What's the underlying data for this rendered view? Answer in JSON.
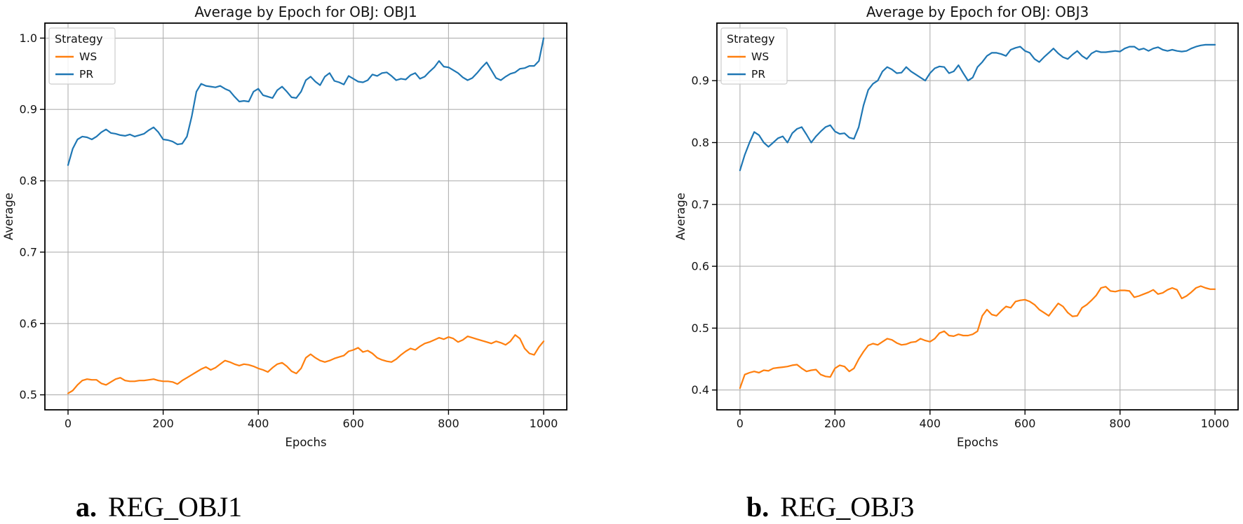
{
  "figure": {
    "background": "#ffffff",
    "colors": {
      "WS": "#ff7f0e",
      "PR": "#1f77b4",
      "grid": "#b0b0b0",
      "spine": "#000000",
      "text": "#141414",
      "legend_border": "#cccccc"
    }
  },
  "captions": [
    {
      "label": "a.",
      "text": "REG_OBJ1"
    },
    {
      "label": "b.",
      "text": "REG_OBJ3"
    }
  ],
  "chart_data": [
    {
      "type": "line",
      "title": "Average by Epoch for OBJ: OBJ1",
      "xlabel": "Epochs",
      "ylabel": "Average",
      "legend_title": "Strategy",
      "legend_position": "upper left",
      "grid": true,
      "x_ticks": [
        0,
        200,
        400,
        600,
        800,
        1000
      ],
      "y_ticks": [
        0.5,
        0.6,
        0.7,
        0.8,
        0.9,
        1.0
      ],
      "xlim": [
        -48.6,
        1048.6
      ],
      "ylim": [
        0.479,
        1.021
      ],
      "x_start": 0,
      "x_step": 10,
      "series": [
        {
          "name": "WS",
          "color": "#ff7f0e",
          "values": [
            0.502,
            0.506,
            0.514,
            0.52,
            0.522,
            0.521,
            0.521,
            0.516,
            0.514,
            0.518,
            0.522,
            0.524,
            0.52,
            0.519,
            0.519,
            0.52,
            0.52,
            0.521,
            0.522,
            0.52,
            0.519,
            0.519,
            0.518,
            0.515,
            0.52,
            0.524,
            0.528,
            0.532,
            0.536,
            0.539,
            0.535,
            0.538,
            0.543,
            0.548,
            0.546,
            0.543,
            0.541,
            0.543,
            0.542,
            0.54,
            0.537,
            0.535,
            0.532,
            0.538,
            0.543,
            0.545,
            0.54,
            0.533,
            0.53,
            0.537,
            0.552,
            0.557,
            0.552,
            0.548,
            0.546,
            0.548,
            0.551,
            0.553,
            0.555,
            0.561,
            0.563,
            0.566,
            0.56,
            0.562,
            0.558,
            0.552,
            0.549,
            0.547,
            0.546,
            0.55,
            0.556,
            0.561,
            0.565,
            0.563,
            0.568,
            0.572,
            0.574,
            0.577,
            0.58,
            0.578,
            0.581,
            0.579,
            0.574,
            0.577,
            0.582,
            0.58,
            0.578,
            0.576,
            0.574,
            0.572,
            0.575,
            0.573,
            0.57,
            0.575,
            0.584,
            0.579,
            0.565,
            0.558,
            0.556,
            0.567,
            0.575
          ]
        },
        {
          "name": "PR",
          "color": "#1f77b4",
          "values": [
            0.822,
            0.845,
            0.858,
            0.862,
            0.861,
            0.858,
            0.862,
            0.868,
            0.872,
            0.867,
            0.866,
            0.864,
            0.863,
            0.865,
            0.862,
            0.864,
            0.866,
            0.871,
            0.875,
            0.868,
            0.858,
            0.857,
            0.855,
            0.851,
            0.852,
            0.862,
            0.89,
            0.925,
            0.936,
            0.933,
            0.932,
            0.931,
            0.933,
            0.929,
            0.926,
            0.918,
            0.911,
            0.912,
            0.911,
            0.925,
            0.929,
            0.92,
            0.918,
            0.916,
            0.927,
            0.932,
            0.925,
            0.917,
            0.916,
            0.925,
            0.941,
            0.946,
            0.939,
            0.934,
            0.946,
            0.951,
            0.94,
            0.938,
            0.935,
            0.947,
            0.943,
            0.939,
            0.938,
            0.941,
            0.949,
            0.947,
            0.951,
            0.952,
            0.947,
            0.941,
            0.943,
            0.942,
            0.948,
            0.951,
            0.943,
            0.946,
            0.953,
            0.959,
            0.968,
            0.96,
            0.959,
            0.955,
            0.951,
            0.945,
            0.941,
            0.944,
            0.951,
            0.959,
            0.966,
            0.955,
            0.944,
            0.941,
            0.946,
            0.95,
            0.952,
            0.957,
            0.958,
            0.961,
            0.961,
            0.968,
            1.0
          ]
        }
      ]
    },
    {
      "type": "line",
      "title": "Average by Epoch for OBJ: OBJ3",
      "xlabel": "Epochs",
      "ylabel": "Average",
      "legend_title": "Strategy",
      "legend_position": "upper left",
      "grid": true,
      "x_ticks": [
        0,
        200,
        400,
        600,
        800,
        1000
      ],
      "y_ticks": [
        0.4,
        0.5,
        0.6,
        0.7,
        0.8,
        0.9
      ],
      "xlim": [
        -48.6,
        1048.6
      ],
      "ylim": [
        0.368,
        0.993
      ],
      "x_start": 0,
      "x_step": 10,
      "series": [
        {
          "name": "WS",
          "color": "#ff7f0e",
          "values": [
            0.403,
            0.425,
            0.428,
            0.43,
            0.428,
            0.432,
            0.431,
            0.435,
            0.436,
            0.437,
            0.438,
            0.44,
            0.441,
            0.435,
            0.43,
            0.432,
            0.433,
            0.425,
            0.422,
            0.421,
            0.435,
            0.44,
            0.438,
            0.43,
            0.435,
            0.45,
            0.462,
            0.472,
            0.475,
            0.473,
            0.478,
            0.483,
            0.481,
            0.476,
            0.473,
            0.474,
            0.477,
            0.478,
            0.483,
            0.48,
            0.478,
            0.483,
            0.492,
            0.495,
            0.488,
            0.487,
            0.49,
            0.488,
            0.488,
            0.49,
            0.495,
            0.52,
            0.53,
            0.522,
            0.52,
            0.528,
            0.535,
            0.533,
            0.543,
            0.545,
            0.546,
            0.543,
            0.538,
            0.53,
            0.525,
            0.52,
            0.53,
            0.54,
            0.535,
            0.525,
            0.519,
            0.52,
            0.533,
            0.538,
            0.545,
            0.553,
            0.565,
            0.567,
            0.56,
            0.559,
            0.561,
            0.561,
            0.56,
            0.55,
            0.552,
            0.555,
            0.558,
            0.562,
            0.555,
            0.557,
            0.562,
            0.565,
            0.562,
            0.548,
            0.552,
            0.558,
            0.565,
            0.568,
            0.565,
            0.563,
            0.563
          ]
        },
        {
          "name": "PR",
          "color": "#1f77b4",
          "values": [
            0.755,
            0.78,
            0.8,
            0.817,
            0.812,
            0.8,
            0.793,
            0.8,
            0.807,
            0.81,
            0.8,
            0.815,
            0.822,
            0.825,
            0.813,
            0.8,
            0.81,
            0.818,
            0.825,
            0.828,
            0.818,
            0.814,
            0.815,
            0.808,
            0.806,
            0.825,
            0.86,
            0.885,
            0.895,
            0.9,
            0.915,
            0.922,
            0.918,
            0.912,
            0.913,
            0.922,
            0.915,
            0.91,
            0.905,
            0.9,
            0.912,
            0.92,
            0.923,
            0.922,
            0.912,
            0.915,
            0.925,
            0.912,
            0.9,
            0.905,
            0.922,
            0.93,
            0.94,
            0.945,
            0.945,
            0.943,
            0.94,
            0.95,
            0.953,
            0.955,
            0.948,
            0.945,
            0.935,
            0.93,
            0.938,
            0.945,
            0.952,
            0.944,
            0.938,
            0.935,
            0.942,
            0.948,
            0.94,
            0.935,
            0.944,
            0.948,
            0.946,
            0.946,
            0.947,
            0.948,
            0.947,
            0.952,
            0.955,
            0.955,
            0.95,
            0.952,
            0.948,
            0.952,
            0.954,
            0.95,
            0.948,
            0.95,
            0.948,
            0.947,
            0.948,
            0.952,
            0.955,
            0.957,
            0.958,
            0.958,
            0.958
          ]
        }
      ]
    }
  ]
}
